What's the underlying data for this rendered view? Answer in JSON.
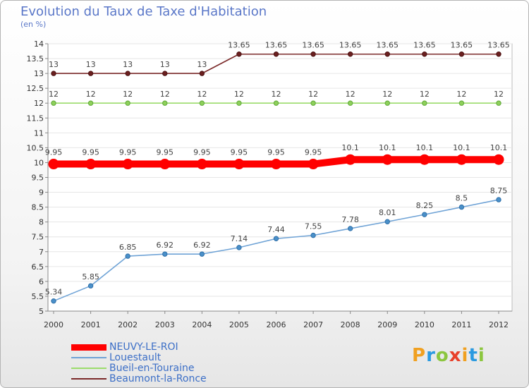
{
  "header": {
    "title": "Evolution du Taux de Taxe d'Habitation",
    "subtitle": "(en %)"
  },
  "chart_data": {
    "type": "line",
    "title": "Evolution du Taux de Taxe d'Habitation",
    "ylabel": "(en %)",
    "xlabel": "",
    "ylim": [
      5,
      14
    ],
    "yticks": [
      "5",
      "5.5",
      "6",
      "6.5",
      "7",
      "7.5",
      "8",
      "8.5",
      "9",
      "9.5",
      "10",
      "10.5",
      "11",
      "11.5",
      "12",
      "12.5",
      "13",
      "13.5",
      "14"
    ],
    "categories": [
      "2000",
      "2001",
      "2002",
      "2003",
      "2004",
      "2005",
      "2006",
      "2007",
      "2008",
      "2009",
      "2010",
      "2011",
      "2012"
    ],
    "series": [
      {
        "name": "NEUVY-LE-ROI",
        "color": "#ff0000",
        "values": [
          9.95,
          9.95,
          9.95,
          9.95,
          9.95,
          9.95,
          9.95,
          9.95,
          10.1,
          10.1,
          10.1,
          10.1,
          10.1
        ],
        "labels": [
          "9.95",
          "9.95",
          "9.95",
          "9.95",
          "9.95",
          "9.95",
          "9.95",
          "9.95",
          "10.1",
          "10.1",
          "10.1",
          "10.1",
          "10.1"
        ]
      },
      {
        "name": "Louestault",
        "color": "#6fa3d6",
        "values": [
          5.34,
          5.85,
          6.85,
          6.92,
          6.92,
          7.14,
          7.44,
          7.55,
          7.78,
          8.01,
          8.25,
          8.5,
          8.75
        ],
        "labels": [
          "5.34",
          "5.85",
          "6.85",
          "6.92",
          "6.92",
          "7.14",
          "7.44",
          "7.55",
          "7.78",
          "8.01",
          "8.25",
          "8.5",
          "8.75"
        ]
      },
      {
        "name": "Bueil-en-Touraine",
        "color": "#9cdc6c",
        "values": [
          12,
          12,
          12,
          12,
          12,
          12,
          12,
          12,
          12,
          12,
          12,
          12,
          12
        ],
        "labels": [
          "12",
          "12",
          "12",
          "12",
          "12",
          "12",
          "12",
          "12",
          "12",
          "12",
          "12",
          "12",
          "12"
        ]
      },
      {
        "name": "Beaumont-la-Ronce",
        "color": "#7b2a2a",
        "values": [
          13,
          13,
          13,
          13,
          13,
          13.65,
          13.65,
          13.65,
          13.65,
          13.65,
          13.65,
          13.65,
          13.65
        ],
        "labels": [
          "13",
          "13",
          "13",
          "13",
          "13",
          "13.65",
          "13.65",
          "13.65",
          "13.65",
          "13.65",
          "13.65",
          "13.65",
          "13.65"
        ]
      }
    ],
    "legend_position": "bottom-left"
  },
  "logo": {
    "letters": [
      "P",
      "r",
      "o",
      "x",
      "i",
      "t",
      "i"
    ],
    "colors": [
      "#f0a020",
      "#2a9ae0",
      "#8cc63f",
      "#e8402a",
      "#f0a020",
      "#2a9ae0",
      "#8cc63f"
    ]
  }
}
